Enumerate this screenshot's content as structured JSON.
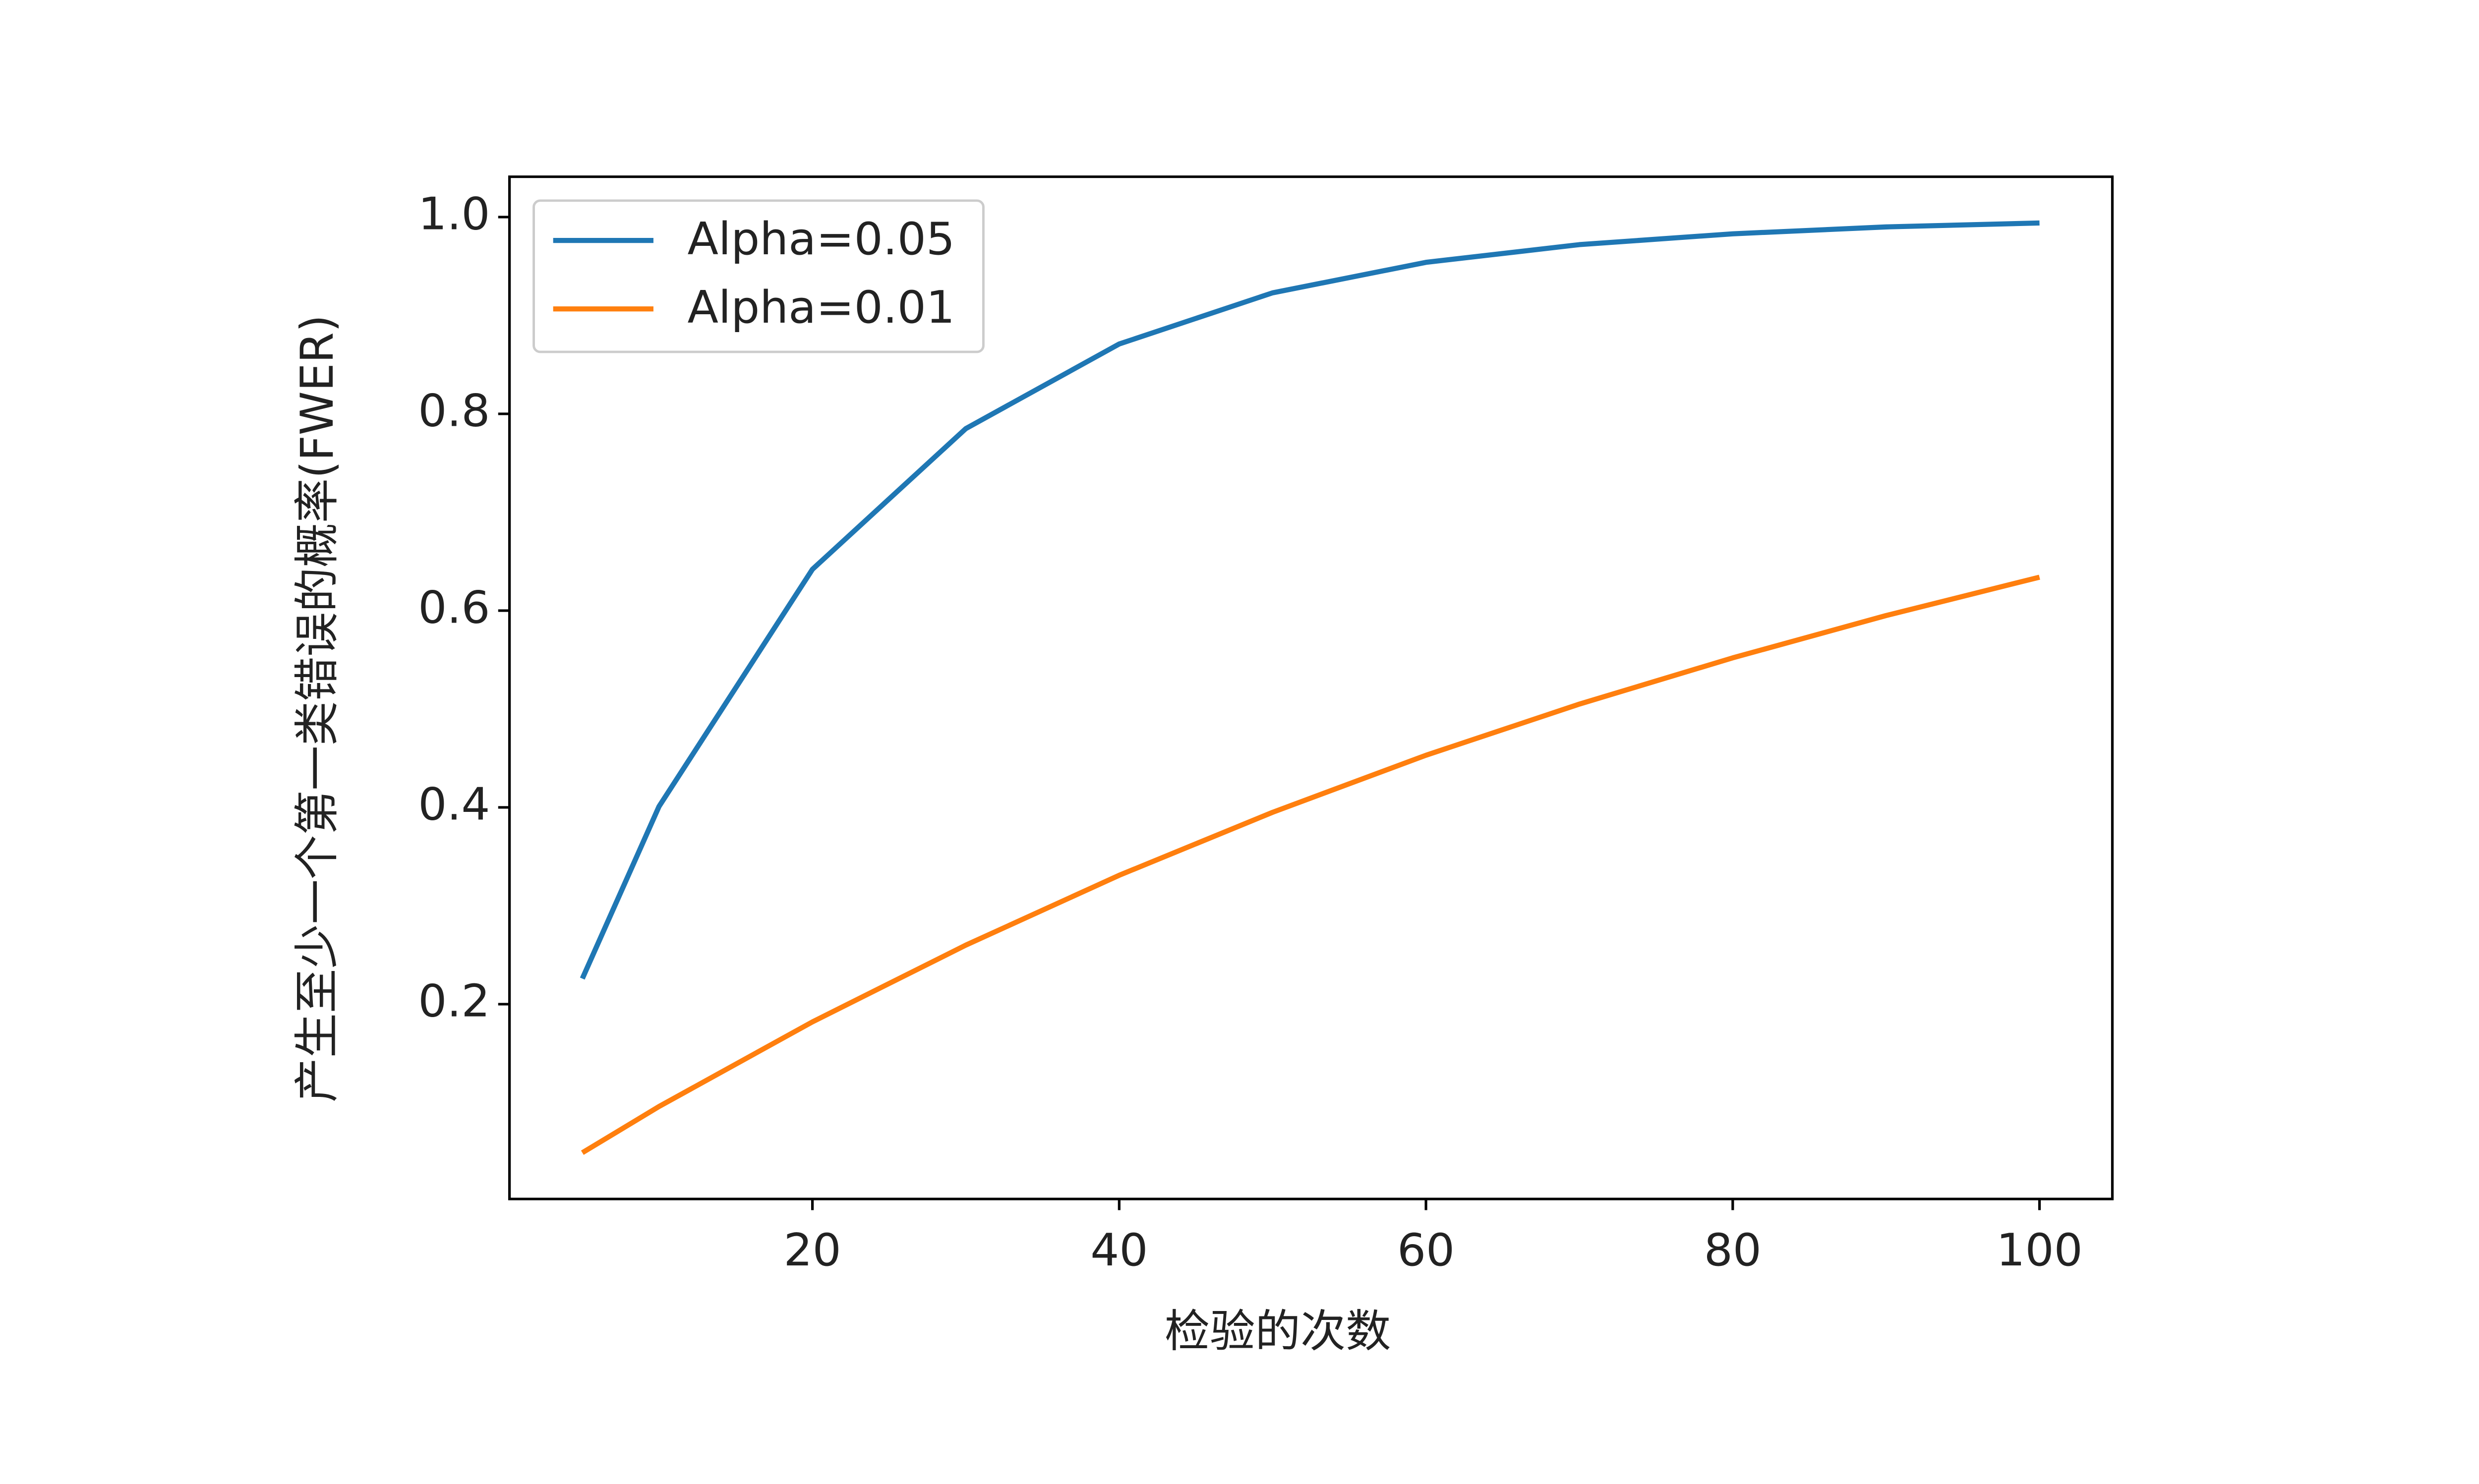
{
  "chart_data": {
    "type": "line",
    "x_label": "检验的次数",
    "y_label": "产生至少一个第一类错误的概率(FWER)",
    "x": [
      5,
      10,
      20,
      30,
      40,
      50,
      60,
      70,
      80,
      90,
      100
    ],
    "series": [
      {
        "name": "Alpha=0.05",
        "color": "#1f77b4",
        "values": [
          0.226,
          0.401,
          0.642,
          0.785,
          0.871,
          0.923,
          0.954,
          0.972,
          0.983,
          0.99,
          0.994
        ]
      },
      {
        "name": "Alpha=0.01",
        "color": "#ff7f0e",
        "values": [
          0.049,
          0.096,
          0.182,
          0.26,
          0.331,
          0.395,
          0.453,
          0.505,
          0.552,
          0.595,
          0.634
        ]
      }
    ],
    "xlim": [
      0.25,
      104.75
    ],
    "xticks": [
      20,
      40,
      60,
      80,
      100
    ],
    "ylim": [
      0.002,
      1.041
    ],
    "yticks": [
      0.2,
      0.4,
      0.6,
      0.8,
      {
        "value": 1,
        "label": "1.0"
      }
    ],
    "legend": "upper left"
  }
}
